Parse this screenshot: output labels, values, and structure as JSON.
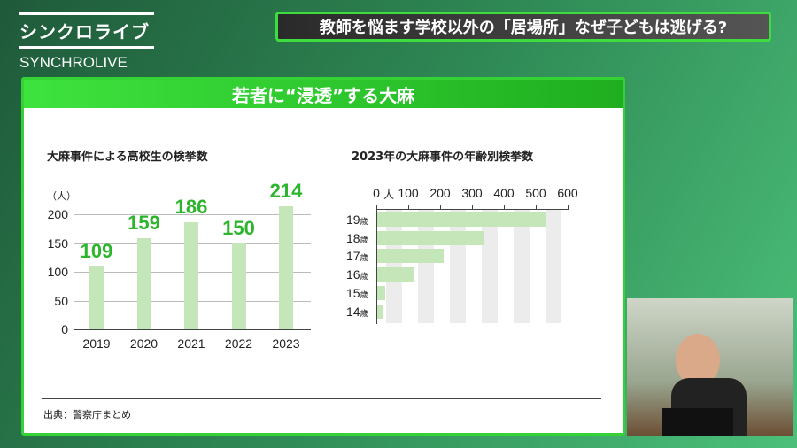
{
  "logo": {
    "jp": "シンクロライブ",
    "en": "SYNCHROLIVE"
  },
  "headline": "教師を悩ます学校以外の「居場所」なぜ子どもは逃げる?",
  "card_title": "若者に“浸透”する大麻",
  "source": "出典：警察庁まとめ",
  "chart_data": [
    {
      "type": "bar",
      "title": "大麻事件による高校生の検挙数",
      "ylabel": "（人）",
      "categories": [
        "2019",
        "2020",
        "2021",
        "2022",
        "2023"
      ],
      "values": [
        109,
        159,
        186,
        150,
        214
      ],
      "ylim": [
        0,
        200
      ],
      "yticks": [
        "0",
        "50",
        "100",
        "150",
        "200"
      ],
      "color": "#c5e6b8",
      "label_color": "#2db52d"
    },
    {
      "type": "bar",
      "orientation": "horizontal",
      "title": "2023年の大麻事件の年齢別検挙数",
      "xlabel": "人",
      "categories": [
        "19",
        "18",
        "17",
        "16",
        "15",
        "14"
      ],
      "unit": "歳",
      "values": [
        530,
        337,
        208,
        115,
        25,
        16
      ],
      "xlim": [
        0,
        600
      ],
      "xticks": [
        "0",
        "100",
        "200",
        "300",
        "400",
        "500",
        "600"
      ],
      "color": "#c5e6b8"
    }
  ]
}
